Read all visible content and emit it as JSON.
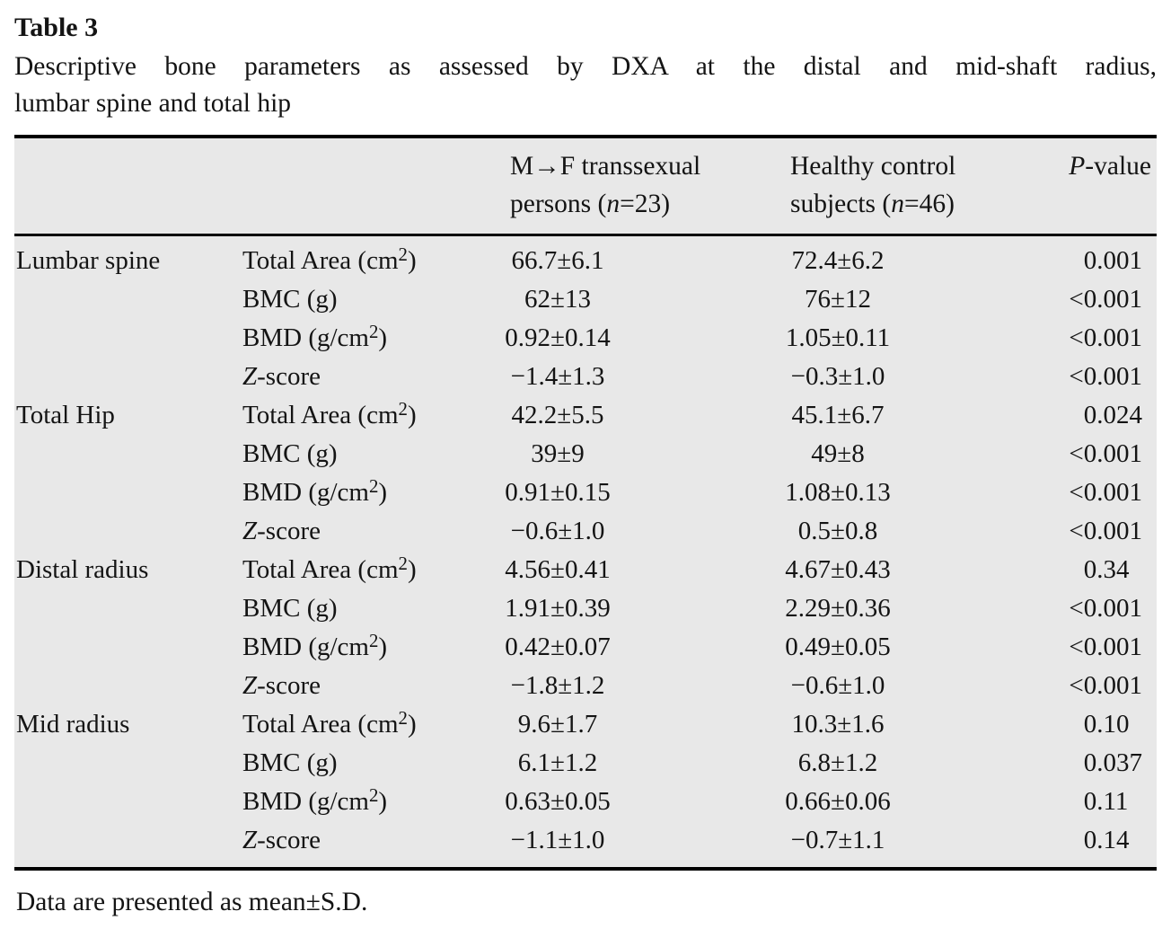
{
  "document": {
    "table_label": "Table 3",
    "caption_lines": [
      "Descriptive bone parameters as assessed by DXA at the distal and mid-shaft radius,",
      "lumbar spine and total hip"
    ],
    "footnote": "Data are presented as mean±S.D."
  },
  "table": {
    "header": {
      "col_group1_line1": "M→F transsexual",
      "col_group1_line2": "persons (*n*=23)",
      "col_group2_line1": "Healthy control",
      "col_group2_line2": "subjects (*n*=46)",
      "col_pvalue": "*P*-value"
    },
    "sections": [
      {
        "region": "Lumbar spine",
        "rows": [
          {
            "parameter": "Total Area (cm^2)",
            "mf_transsexual": "66.7±6.1",
            "healthy_control": "72.4±6.2",
            "p_value": "0.001"
          },
          {
            "parameter": "BMC (g)",
            "mf_transsexual": "62±13",
            "healthy_control": "76±12",
            "p_value": "<0.001"
          },
          {
            "parameter": "BMD (g/cm^2)",
            "mf_transsexual": "0.92±0.14",
            "healthy_control": "1.05±0.11",
            "p_value": "<0.001"
          },
          {
            "parameter": "*Z*-score",
            "mf_transsexual": "−1.4±1.3",
            "healthy_control": "−0.3±1.0",
            "p_value": "<0.001"
          }
        ]
      },
      {
        "region": "Total Hip",
        "rows": [
          {
            "parameter": "Total Area (cm^2)",
            "mf_transsexual": "42.2±5.5",
            "healthy_control": "45.1±6.7",
            "p_value": "0.024"
          },
          {
            "parameter": "BMC (g)",
            "mf_transsexual": "39±9",
            "healthy_control": "49±8",
            "p_value": "<0.001"
          },
          {
            "parameter": "BMD (g/cm^2)",
            "mf_transsexual": "0.91±0.15",
            "healthy_control": "1.08±0.13",
            "p_value": "<0.001"
          },
          {
            "parameter": "*Z*-score",
            "mf_transsexual": "−0.6±1.0",
            "healthy_control": "0.5±0.8",
            "p_value": "<0.001"
          }
        ]
      },
      {
        "region": "Distal radius",
        "rows": [
          {
            "parameter": "Total Area (cm^2)",
            "mf_transsexual": "4.56±0.41",
            "healthy_control": "4.67±0.43",
            "p_value": "0.34"
          },
          {
            "parameter": "BMC (g)",
            "mf_transsexual": "1.91±0.39",
            "healthy_control": "2.29±0.36",
            "p_value": "<0.001"
          },
          {
            "parameter": "BMD (g/cm^2)",
            "mf_transsexual": "0.42±0.07",
            "healthy_control": "0.49±0.05",
            "p_value": "<0.001"
          },
          {
            "parameter": "*Z*-score",
            "mf_transsexual": "−1.8±1.2",
            "healthy_control": "−0.6±1.0",
            "p_value": "<0.001"
          }
        ]
      },
      {
        "region": "Mid radius",
        "rows": [
          {
            "parameter": "Total Area (cm^2)",
            "mf_transsexual": "9.6±1.7",
            "healthy_control": "10.3±1.6",
            "p_value": "0.10"
          },
          {
            "parameter": "BMC (g)",
            "mf_transsexual": "6.1±1.2",
            "healthy_control": "6.8±1.2",
            "p_value": "0.037"
          },
          {
            "parameter": "BMD (g/cm^2)",
            "mf_transsexual": "0.63±0.05",
            "healthy_control": "0.66±0.06",
            "p_value": "0.11"
          },
          {
            "parameter": "*Z*-score",
            "mf_transsexual": "−1.1±1.0",
            "healthy_control": "−0.7±1.1",
            "p_value": "0.14"
          }
        ]
      }
    ]
  },
  "colors": {
    "page_background": "#ffffff",
    "table_background": "#e8e8e8",
    "rule_color": "#000000",
    "text_color": "#141414"
  }
}
